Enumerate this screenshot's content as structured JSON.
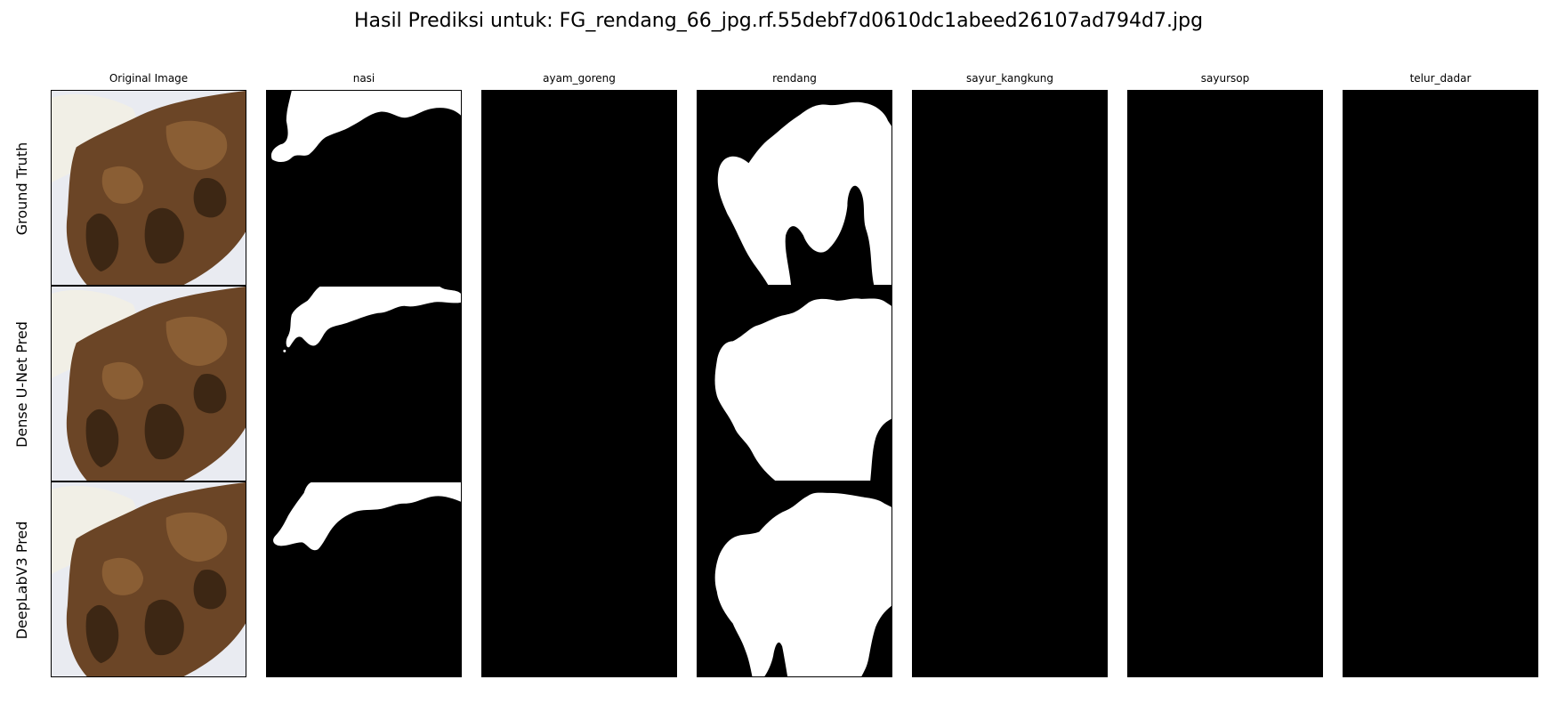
{
  "figure": {
    "title": "Hasil Prediksi untuk: FG_rendang_66_jpg.rf.55debf7d0610dc1abeed26107ad794d7.jpg"
  },
  "columns": [
    {
      "label": "Original Image",
      "kind": "photo"
    },
    {
      "label": "nasi",
      "kind": "mask"
    },
    {
      "label": "ayam_goreng",
      "kind": "mask"
    },
    {
      "label": "rendang",
      "kind": "mask"
    },
    {
      "label": "sayur_kangkung",
      "kind": "mask"
    },
    {
      "label": "sayursop",
      "kind": "mask"
    },
    {
      "label": "telur_dadar",
      "kind": "mask"
    }
  ],
  "rows": [
    {
      "label": "Ground Truth"
    },
    {
      "label": "Dense U-Net Pred"
    },
    {
      "label": "DeepLabV3 Pred"
    }
  ],
  "colors": {
    "mask_background": "#000000",
    "mask_foreground": "#ffffff",
    "plate": "#e9ebf1",
    "rice": "#f1efe6",
    "rendang": "#6b4526",
    "rendang_dark": "#3d2714",
    "rendang_light": "#8a5e34"
  }
}
